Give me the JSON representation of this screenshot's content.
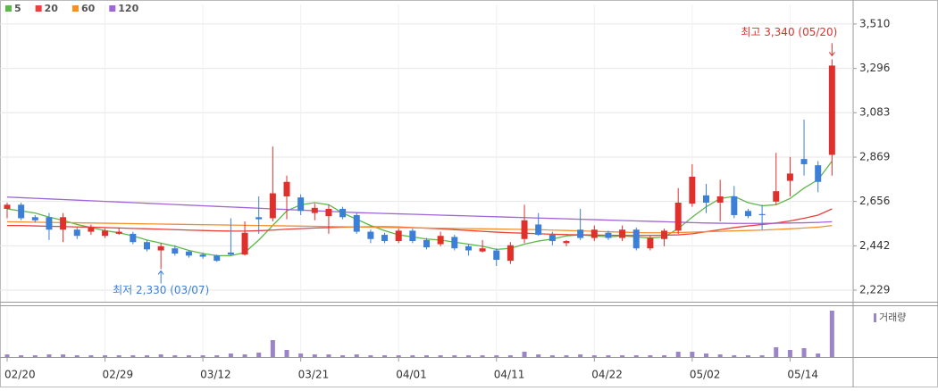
{
  "chart_data": {
    "type": "candlestick",
    "categories": [
      "02/20",
      null,
      null,
      null,
      null,
      null,
      null,
      "02/29",
      null,
      null,
      null,
      null,
      null,
      null,
      "03/12",
      null,
      null,
      null,
      null,
      null,
      null,
      "03/21",
      null,
      null,
      null,
      null,
      null,
      null,
      "04/01",
      null,
      null,
      null,
      null,
      null,
      null,
      "04/11",
      null,
      null,
      null,
      null,
      null,
      null,
      "04/22",
      null,
      null,
      null,
      null,
      null,
      null,
      "05/02",
      null,
      null,
      null,
      null,
      null,
      null,
      "05/14",
      null,
      null,
      null
    ],
    "open": [
      2620,
      2640,
      2580,
      2580,
      2520,
      2520,
      2510,
      2490,
      2500,
      2500,
      2460,
      2420,
      2430,
      2415,
      2400,
      2395,
      2410,
      2400,
      2580,
      2575,
      2680,
      2675,
      2600,
      2585,
      2620,
      2590,
      2510,
      2495,
      2465,
      2515,
      2470,
      2450,
      2485,
      2440,
      2415,
      2420,
      2370,
      2475,
      2545,
      2495,
      2455,
      2520,
      2480,
      2505,
      2480,
      2520,
      2430,
      2475,
      2515,
      2645,
      2685,
      2650,
      2680,
      2610,
      2595,
      2655,
      2755,
      2860,
      2830,
      2880
    ],
    "high": [
      2650,
      2650,
      2590,
      2600,
      2600,
      2530,
      2545,
      2525,
      2530,
      2510,
      2470,
      2455,
      2445,
      2420,
      2410,
      2400,
      2575,
      2560,
      2680,
      2920,
      2780,
      2690,
      2645,
      2640,
      2630,
      2600,
      2520,
      2505,
      2525,
      2525,
      2480,
      2510,
      2495,
      2450,
      2470,
      2430,
      2460,
      2640,
      2600,
      2510,
      2470,
      2620,
      2540,
      2515,
      2540,
      2530,
      2490,
      2525,
      2720,
      2835,
      2740,
      2760,
      2730,
      2620,
      2640,
      2890,
      2870,
      3050,
      2850,
      3340
    ],
    "low": [
      2575,
      2565,
      2555,
      2470,
      2460,
      2475,
      2495,
      2480,
      2495,
      2450,
      2415,
      2330,
      2395,
      2385,
      2380,
      2365,
      2395,
      2395,
      2500,
      2560,
      2570,
      2590,
      2565,
      2500,
      2570,
      2500,
      2455,
      2455,
      2455,
      2455,
      2425,
      2440,
      2420,
      2395,
      2410,
      2345,
      2355,
      2455,
      2490,
      2445,
      2440,
      2470,
      2465,
      2470,
      2465,
      2420,
      2420,
      2440,
      2500,
      2630,
      2600,
      2560,
      2575,
      2575,
      2520,
      2640,
      2680,
      2780,
      2700,
      2780
    ],
    "close": [
      2640,
      2575,
      2565,
      2520,
      2580,
      2490,
      2530,
      2515,
      2510,
      2460,
      2425,
      2440,
      2405,
      2395,
      2390,
      2370,
      2400,
      2505,
      2570,
      2695,
      2750,
      2610,
      2625,
      2620,
      2580,
      2510,
      2475,
      2465,
      2515,
      2465,
      2435,
      2490,
      2430,
      2420,
      2430,
      2375,
      2445,
      2565,
      2495,
      2465,
      2465,
      2480,
      2520,
      2480,
      2520,
      2430,
      2480,
      2515,
      2650,
      2775,
      2650,
      2680,
      2590,
      2585,
      2590,
      2705,
      2790,
      2835,
      2750,
      3310
    ],
    "up_color": "#e0302c",
    "down_color": "#3b7fd9",
    "series": [
      {
        "name": "5",
        "color": "#5cb84a",
        "values": [
          2620,
          2610,
          2600,
          2580,
          2565,
          2545,
          2530,
          2515,
          2505,
          2490,
          2470,
          2455,
          2440,
          2420,
          2405,
          2395,
          2395,
          2410,
          2470,
          2540,
          2610,
          2640,
          2650,
          2640,
          2600,
          2570,
          2540,
          2515,
          2495,
          2485,
          2475,
          2470,
          2460,
          2450,
          2440,
          2425,
          2430,
          2450,
          2465,
          2475,
          2490,
          2495,
          2490,
          2485,
          2490,
          2485,
          2480,
          2485,
          2525,
          2580,
          2630,
          2670,
          2680,
          2650,
          2635,
          2640,
          2670,
          2720,
          2760,
          2850
        ]
      },
      {
        "name": "20",
        "color": "#e8413c",
        "values": [
          2540,
          2540,
          2538,
          2536,
          2535,
          2533,
          2532,
          2530,
          2528,
          2526,
          2524,
          2522,
          2520,
          2518,
          2516,
          2514,
          2513,
          2513,
          2515,
          2518,
          2522,
          2525,
          2528,
          2530,
          2532,
          2533,
          2534,
          2534,
          2533,
          2530,
          2527,
          2524,
          2520,
          2516,
          2512,
          2508,
          2505,
          2503,
          2500,
          2498,
          2496,
          2495,
          2494,
          2493,
          2492,
          2492,
          2492,
          2493,
          2495,
          2500,
          2510,
          2520,
          2530,
          2538,
          2545,
          2552,
          2562,
          2575,
          2590,
          2620
        ]
      },
      {
        "name": "60",
        "color": "#f29030",
        "values": [
          2558,
          2557,
          2556,
          2555,
          2554,
          2553,
          2552,
          2551,
          2550,
          2549,
          2548,
          2547,
          2546,
          2545,
          2544,
          2543,
          2542,
          2541,
          2540,
          2539,
          2538,
          2537,
          2536,
          2535,
          2534,
          2533,
          2532,
          2531,
          2530,
          2529,
          2528,
          2527,
          2526,
          2525,
          2524,
          2523,
          2522,
          2521,
          2520,
          2518,
          2516,
          2514,
          2512,
          2510,
          2508,
          2506,
          2505,
          2505,
          2506,
          2508,
          2510,
          2512,
          2514,
          2516,
          2518,
          2521,
          2524,
          2528,
          2532,
          2540
        ]
      },
      {
        "name": "120",
        "color": "#a065d6",
        "values": [
          2677,
          2674,
          2671,
          2668,
          2665,
          2662,
          2659,
          2656,
          2653,
          2650,
          2647,
          2644,
          2641,
          2638,
          2635,
          2632,
          2629,
          2626,
          2623,
          2620,
          2617,
          2614,
          2611,
          2608,
          2605,
          2602,
          2600,
          2598,
          2596,
          2594,
          2592,
          2590,
          2588,
          2586,
          2584,
          2582,
          2580,
          2578,
          2576,
          2574,
          2572,
          2570,
          2568,
          2566,
          2564,
          2562,
          2560,
          2558,
          2556,
          2554,
          2552,
          2551,
          2550,
          2550,
          2550,
          2551,
          2552,
          2553,
          2555,
          2558
        ]
      }
    ],
    "volume": {
      "name": "거래량",
      "color": "#9b84c7",
      "values": [
        3,
        2,
        2,
        3,
        3,
        2,
        2,
        2,
        2,
        2,
        2,
        3,
        2,
        2,
        2,
        2,
        4,
        3,
        5,
        19,
        8,
        4,
        3,
        3,
        2,
        3,
        2,
        2,
        2,
        2,
        2,
        2,
        2,
        2,
        2,
        2,
        2,
        6,
        3,
        2,
        2,
        3,
        2,
        2,
        2,
        2,
        2,
        2,
        6,
        6,
        4,
        3,
        2,
        2,
        2,
        11,
        8,
        10,
        4,
        52
      ]
    },
    "vlim": [
      0,
      55
    ],
    "ylim": [
      2173,
      3604
    ],
    "yticks": [
      {
        "value": 2229,
        "label": "2,229"
      },
      {
        "value": 2442,
        "label": "2,442"
      },
      {
        "value": 2656,
        "label": "2,656"
      },
      {
        "value": 2869,
        "label": "2,869"
      },
      {
        "value": 3083,
        "label": "3,083"
      },
      {
        "value": 3296,
        "label": "3,296"
      },
      {
        "value": 3510,
        "label": "3,510"
      }
    ],
    "grid": true,
    "annotations": [
      {
        "kind": "high",
        "value": 3340,
        "label": "최고 3,340 (05/20)"
      },
      {
        "kind": "low",
        "value": 2330,
        "label": "최저 2,330 (03/07)"
      }
    ]
  }
}
